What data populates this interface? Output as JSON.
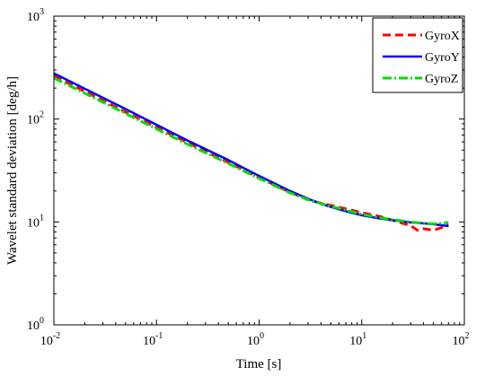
{
  "chart_data": {
    "type": "line",
    "xlabel": "Time [s]",
    "ylabel": "Wavelet standard deviation [deg/h]",
    "x_scale": "log",
    "y_scale": "log",
    "xlim": [
      0.01,
      100
    ],
    "ylim": [
      1,
      1000
    ],
    "grid": false,
    "legend_position": "top-right",
    "x_ticks": [
      {
        "base": "10",
        "exp": "-2"
      },
      {
        "base": "10",
        "exp": "-1"
      },
      {
        "base": "10",
        "exp": "0"
      },
      {
        "base": "10",
        "exp": "1"
      },
      {
        "base": "10",
        "exp": "2"
      }
    ],
    "y_ticks": [
      {
        "base": "10",
        "exp": "0"
      },
      {
        "base": "10",
        "exp": "1"
      },
      {
        "base": "10",
        "exp": "2"
      },
      {
        "base": "10",
        "exp": "3"
      }
    ],
    "series": [
      {
        "name": "GyroX",
        "color": "#ff0000",
        "style": "dashed",
        "x": [
          0.01,
          0.02,
          0.05,
          0.1,
          0.2,
          0.5,
          1,
          2,
          3,
          4,
          5,
          7,
          10,
          15,
          20,
          30,
          35,
          40,
          50,
          60,
          70
        ],
        "y": [
          262,
          185,
          117,
          83,
          59,
          38,
          27,
          19.5,
          16.5,
          15.2,
          14.5,
          13.4,
          12.3,
          11.3,
          10.4,
          9.2,
          8.3,
          8.6,
          8.3,
          8.8,
          9.4
        ]
      },
      {
        "name": "GyroY",
        "color": "#0000ff",
        "style": "solid",
        "x": [
          0.01,
          0.02,
          0.05,
          0.1,
          0.2,
          0.5,
          1,
          2,
          3,
          4,
          5,
          7,
          10,
          15,
          20,
          30,
          40,
          50,
          60,
          70
        ],
        "y": [
          278,
          197,
          125,
          88,
          62,
          40,
          28,
          20,
          16.8,
          15,
          14,
          12.7,
          11.6,
          10.8,
          10.4,
          9.9,
          9.7,
          9.5,
          9.3,
          9.1
        ]
      },
      {
        "name": "GyroZ",
        "color": "#00dd00",
        "style": "dashdot",
        "x": [
          0.01,
          0.02,
          0.05,
          0.1,
          0.2,
          0.5,
          1,
          2,
          3,
          4,
          5,
          7,
          10,
          15,
          20,
          30,
          40,
          50,
          60,
          70
        ],
        "y": [
          250,
          178,
          113,
          80,
          57,
          37,
          26.5,
          19.2,
          16.4,
          15.1,
          14.2,
          13,
          11.9,
          11,
          10.5,
          10,
          9.7,
          9.6,
          9.7,
          9.9
        ]
      }
    ]
  }
}
